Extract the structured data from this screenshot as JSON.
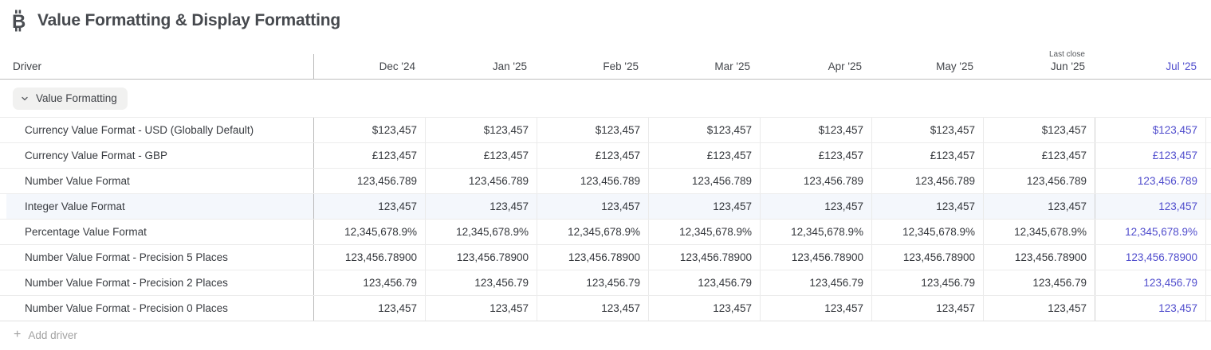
{
  "page": {
    "title": "Value Formatting & Display Formatting",
    "title_icon": "bitcoin-icon"
  },
  "colors": {
    "forecast_text": "#504dcd",
    "highlight_row_bg": "#f4f7fc"
  },
  "table": {
    "driver_header": "Driver",
    "columns": [
      {
        "label": "Dec '24"
      },
      {
        "label": "Jan '25"
      },
      {
        "label": "Feb '25"
      },
      {
        "label": "Mar '25"
      },
      {
        "label": "Apr '25"
      },
      {
        "label": "May '25"
      },
      {
        "label": "Jun '25",
        "sublabel": "Last close"
      },
      {
        "label": "Jul '25",
        "forecast": true
      }
    ],
    "section": {
      "label": "Value Formatting",
      "state": "expanded"
    },
    "rows": [
      {
        "label": "Currency Value Format - USD (Globally Default)",
        "value": "$123,457"
      },
      {
        "label": "Currency Value Format - GBP",
        "value": "£123,457"
      },
      {
        "label": "Number Value Format",
        "value": "123,456.789"
      },
      {
        "label": "Integer Value Format",
        "value": "123,457",
        "highlighted": true
      },
      {
        "label": "Percentage Value Format",
        "value": "12,345,678.9%"
      },
      {
        "label": "Number Value Format - Precision 5 Places",
        "value": "123,456.78900"
      },
      {
        "label": "Number Value Format - Precision 2 Places",
        "value": "123,456.79"
      },
      {
        "label": "Number Value Format - Precision 0 Places",
        "value": "123,457"
      }
    ],
    "add_driver": {
      "label": "Add driver",
      "icon": "plus-icon"
    }
  }
}
